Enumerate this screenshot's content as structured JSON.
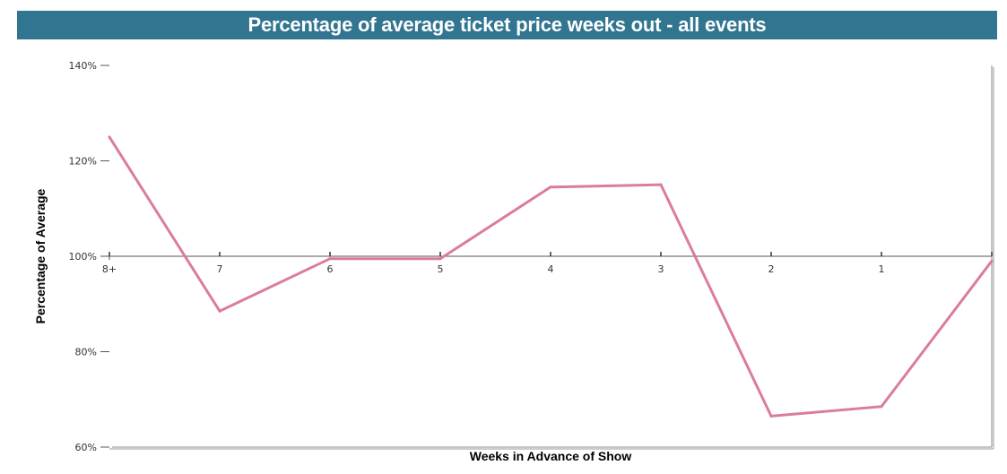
{
  "chart_data": {
    "type": "line",
    "title": "Percentage of average ticket price weeks out - all events",
    "xlabel": "Weeks in Advance of Show",
    "ylabel": "Percentage of Average",
    "categories": [
      "8+",
      "7",
      "6",
      "5",
      "4",
      "3",
      "2",
      "1",
      ""
    ],
    "values": [
      125,
      88.5,
      99.5,
      99.5,
      114.5,
      115,
      66.5,
      68.5,
      99
    ],
    "y_ticks": [
      60,
      80,
      100,
      120,
      140
    ],
    "y_tick_labels": [
      "60%",
      "80%",
      "100%",
      "120%",
      "140%"
    ],
    "ylim": [
      60,
      140
    ],
    "x_axis_at": 100,
    "grid": false,
    "colors": {
      "title_bar": "#317590",
      "title_text": "#ffffff",
      "line": "#DB7D98",
      "axis": "#555555"
    }
  }
}
